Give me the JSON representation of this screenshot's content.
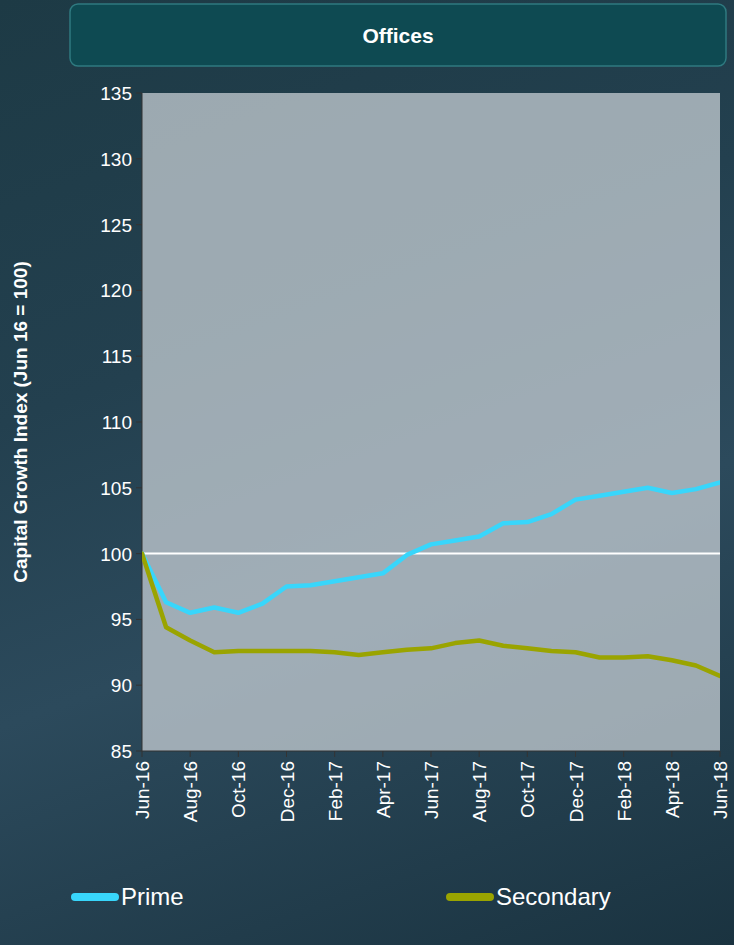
{
  "chart_data": {
    "type": "line",
    "title": "Offices",
    "y_label": "Capital Growth Index (Jun 16 = 100)",
    "categories": [
      "Jun-16",
      null,
      "Aug-16",
      null,
      "Oct-16",
      null,
      "Dec-16",
      null,
      "Feb-17",
      null,
      "Apr-17",
      null,
      "Jun-17",
      null,
      "Aug-17",
      null,
      "Oct-17",
      null,
      "Dec-17",
      null,
      "Feb-18",
      null,
      "Apr-18",
      null,
      "Jun-18"
    ],
    "series": [
      {
        "name": "Prime",
        "color": "#38d6fb",
        "values": [
          100,
          96.3,
          95.5,
          95.9,
          95.5,
          96.2,
          97.5,
          97.6,
          97.9,
          98.2,
          98.5,
          99.9,
          100.7,
          101.0,
          101.3,
          102.3,
          102.4,
          103.0,
          104.1,
          104.4,
          104.7,
          105.0,
          104.6,
          104.9,
          105.4
        ]
      },
      {
        "name": "Secondary",
        "color": "#9aa400",
        "values": [
          100,
          94.4,
          93.4,
          92.5,
          92.6,
          92.6,
          92.6,
          92.6,
          92.5,
          92.3,
          92.5,
          92.7,
          92.8,
          93.2,
          93.4,
          93.0,
          92.8,
          92.6,
          92.5,
          92.1,
          92.1,
          92.2,
          91.9,
          91.5,
          90.7
        ]
      }
    ],
    "reference_line": 100,
    "ylim": [
      85,
      135
    ],
    "yticks": [
      85,
      90,
      95,
      100,
      105,
      110,
      115,
      120,
      125,
      130,
      135
    ],
    "grid": false,
    "legend": "bottom"
  }
}
